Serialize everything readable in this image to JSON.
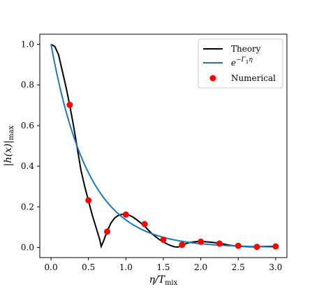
{
  "chart_data": {
    "type": "line",
    "xlabel": "η/T",
    "xlabel_sub": "mix",
    "ylabel": "|h(x)|",
    "ylabel_sub": "max",
    "xlim": [
      -0.15,
      3.15
    ],
    "ylim": [
      -0.05,
      1.05
    ],
    "xticks": [
      "0.0",
      "0.5",
      "1.0",
      "1.5",
      "2.0",
      "2.5",
      "3.0"
    ],
    "yticks": [
      "0.0",
      "0.2",
      "0.4",
      "0.6",
      "0.8",
      "1.0"
    ],
    "grid": false,
    "legend_position": "top-right",
    "series": [
      {
        "name": "Theory",
        "kind": "line",
        "color": "#000000",
        "x": [
          0.0,
          0.05,
          0.1,
          0.15,
          0.2,
          0.25,
          0.3,
          0.35,
          0.4,
          0.45,
          0.5,
          0.55,
          0.6,
          0.65,
          0.67,
          0.7,
          0.75,
          0.8,
          0.85,
          0.9,
          0.95,
          1.0,
          1.05,
          1.1,
          1.15,
          1.2,
          1.25,
          1.3,
          1.35,
          1.4,
          1.45,
          1.5,
          1.55,
          1.6,
          1.65,
          1.7,
          1.75,
          1.8,
          1.85,
          1.9,
          1.95,
          2.0,
          2.1,
          2.2,
          2.3,
          2.4,
          2.5,
          2.6,
          2.7,
          2.8,
          2.9,
          3.0
        ],
        "y": [
          1.0,
          0.99,
          0.95,
          0.87,
          0.79,
          0.7,
          0.6,
          0.49,
          0.38,
          0.3,
          0.23,
          0.16,
          0.1,
          0.04,
          0.005,
          0.03,
          0.08,
          0.12,
          0.145,
          0.158,
          0.163,
          0.163,
          0.158,
          0.148,
          0.135,
          0.12,
          0.105,
          0.085,
          0.067,
          0.052,
          0.038,
          0.027,
          0.017,
          0.009,
          0.003,
          0.002,
          0.01,
          0.018,
          0.024,
          0.027,
          0.029,
          0.029,
          0.027,
          0.023,
          0.017,
          0.01,
          0.006,
          0.004,
          0.003,
          0.004,
          0.005,
          0.005
        ]
      },
      {
        "name": "e^{-Γ₁η}",
        "kind": "exp",
        "color": "#1f77b4",
        "rate": 2.0
      },
      {
        "name": "Numerical",
        "kind": "scatter",
        "color": "#ff0000",
        "x": [
          0.25,
          0.5,
          0.75,
          1.0,
          1.25,
          1.5,
          1.75,
          2.0,
          2.25,
          2.5,
          2.75,
          3.0
        ],
        "y": [
          0.702,
          0.232,
          0.078,
          0.162,
          0.115,
          0.038,
          0.013,
          0.028,
          0.019,
          0.008,
          0.003,
          0.005
        ]
      }
    ],
    "legend": {
      "theory": "Theory",
      "exp_base": "e",
      "exp_power": "−Γ",
      "exp_power_sub": "1",
      "exp_power_tail": "η",
      "numerical": "Numerical"
    }
  }
}
